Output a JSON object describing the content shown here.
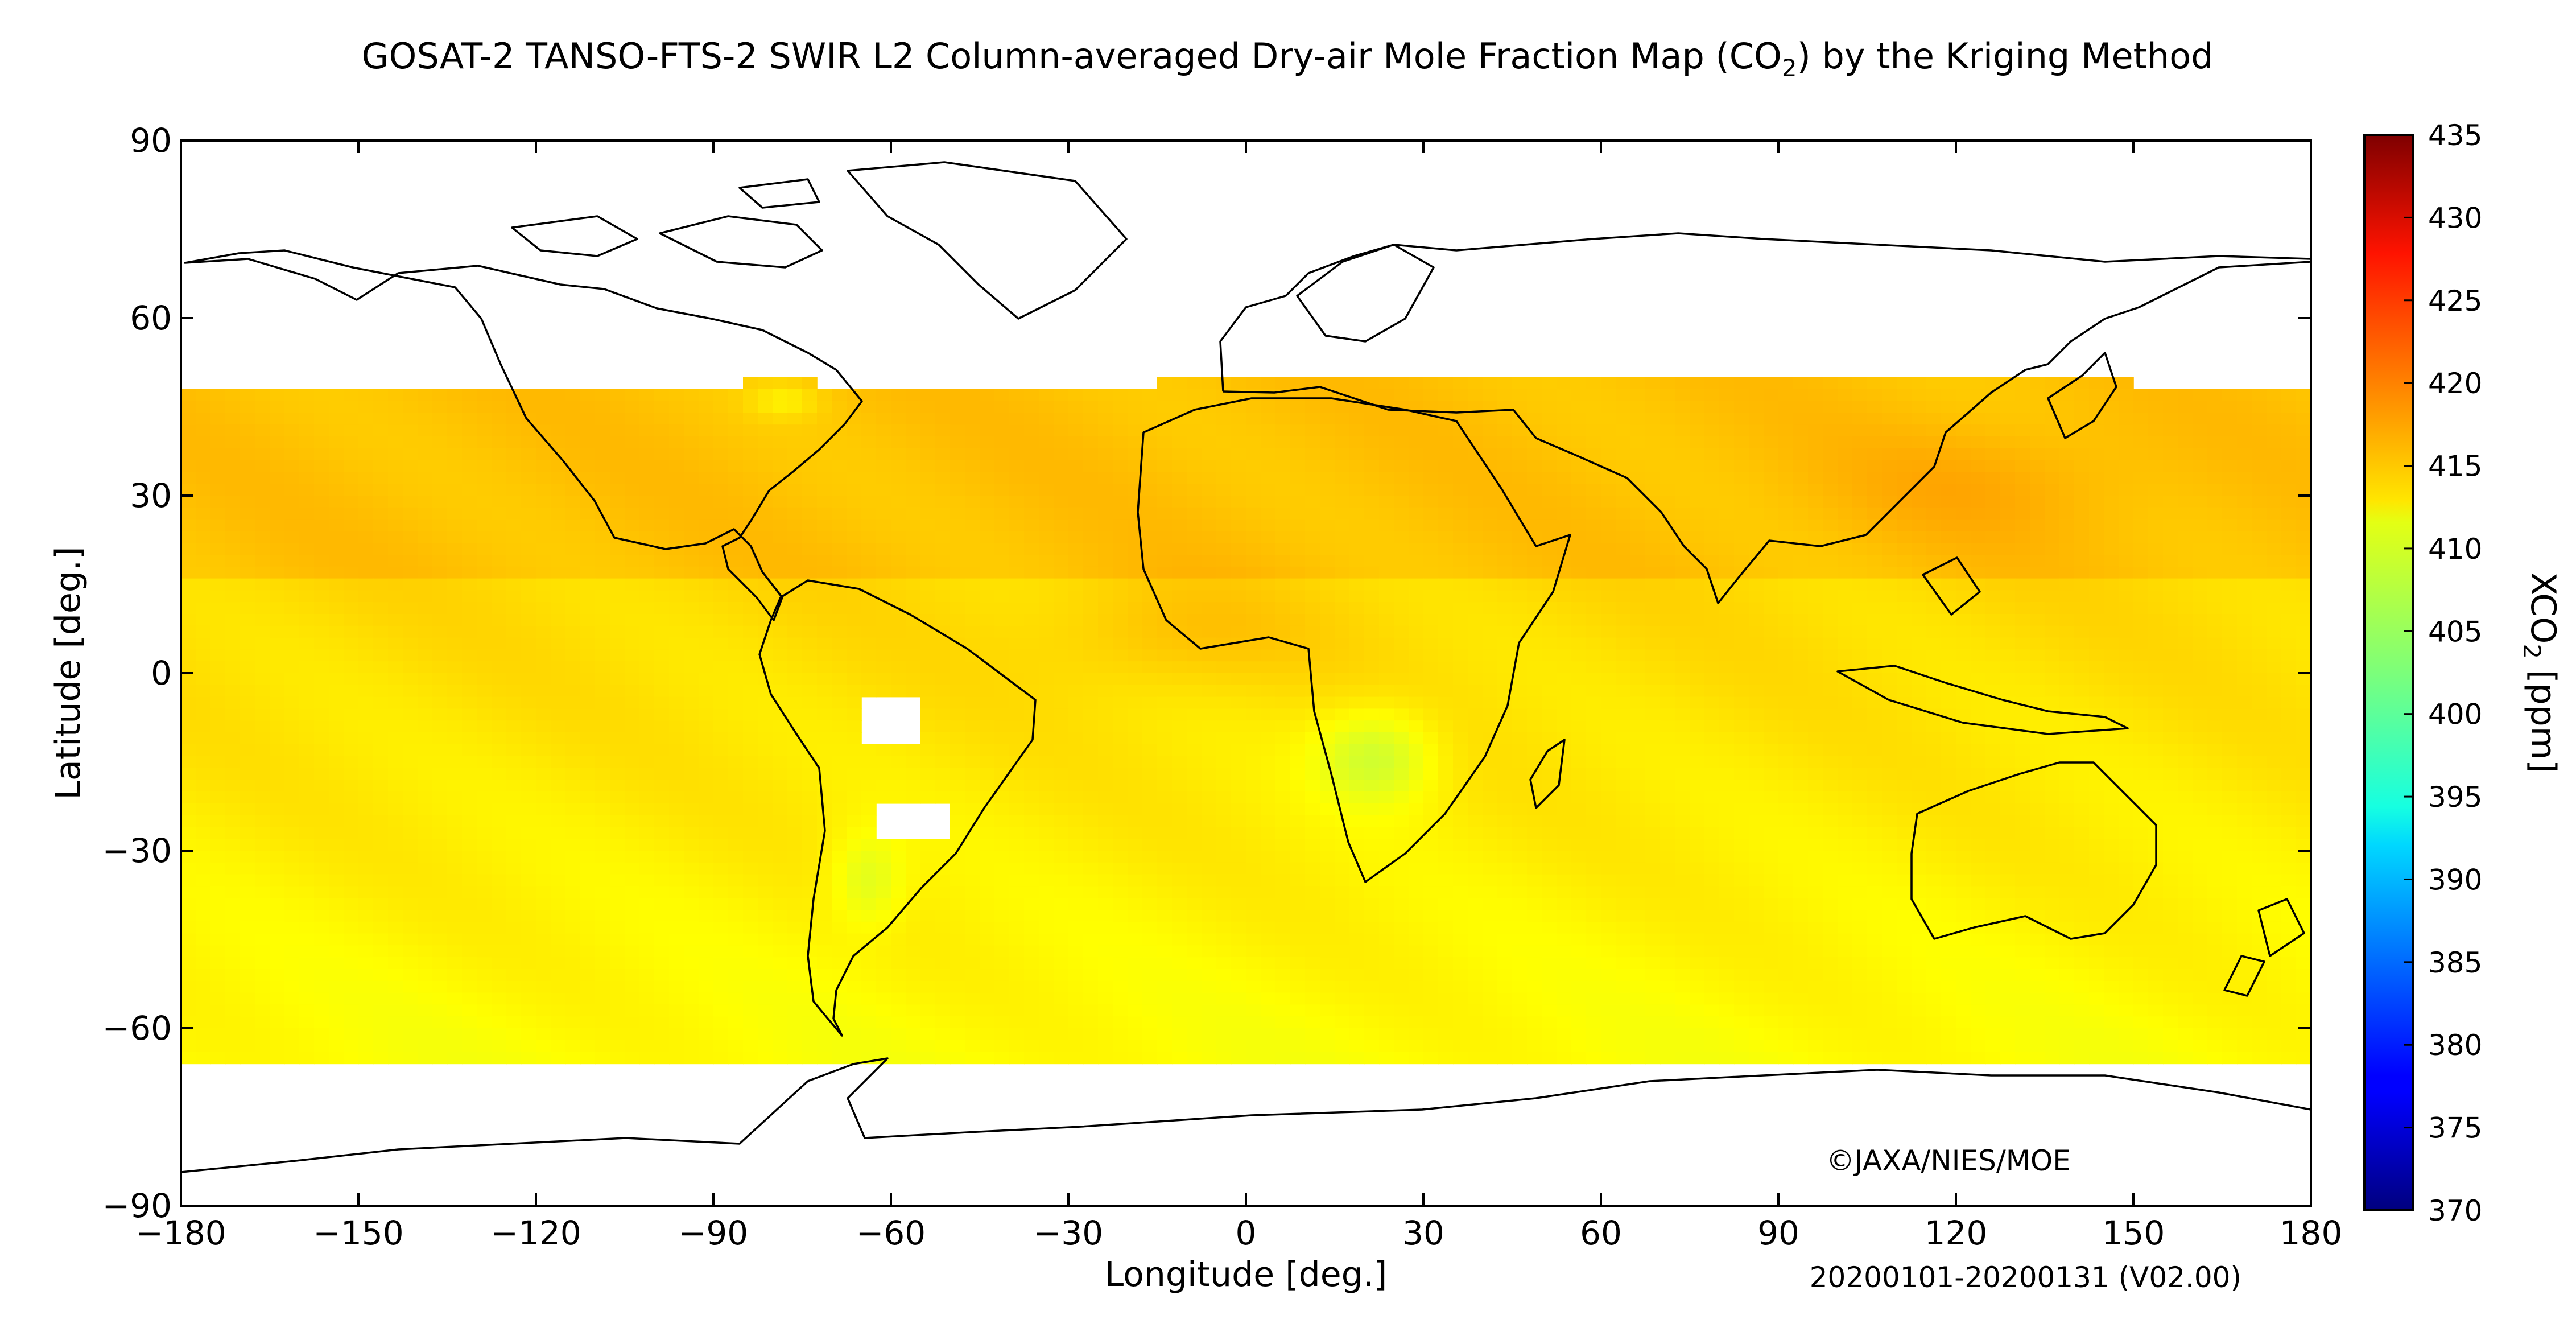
{
  "chart_data": {
    "type": "heatmap",
    "title_main": "GOSAT-2 TANSO-FTS-2 SWIR L2 Column-averaged Dry-air Mole Fraction Map (CO",
    "title_sub": "2",
    "title_end": ") by the Kriging Method",
    "xlabel": "Longitude [deg.]",
    "ylabel": "Latitude [deg.]",
    "xlim": [
      -180,
      180
    ],
    "ylim": [
      -90,
      90
    ],
    "xticks": [
      -180,
      -150,
      -120,
      -90,
      -60,
      -30,
      0,
      30,
      60,
      90,
      120,
      150,
      180
    ],
    "yticks": [
      -90,
      -60,
      -30,
      0,
      30,
      60,
      90
    ],
    "xtick_labels": [
      "−180",
      "−150",
      "−120",
      "−90",
      "−60",
      "−30",
      "0",
      "30",
      "60",
      "90",
      "120",
      "150",
      "180"
    ],
    "ytick_labels": [
      "−90",
      "−60",
      "−30",
      "0",
      "30",
      "60",
      "90"
    ],
    "colorbar": {
      "label_main": "XCO",
      "label_sub": "2",
      "label_end": " [ppm]",
      "range": [
        370,
        435
      ],
      "ticks": [
        370,
        375,
        380,
        385,
        390,
        395,
        400,
        405,
        410,
        415,
        420,
        425,
        430,
        435
      ],
      "colormap": "jet"
    },
    "coverage_lat": [
      -65,
      50
    ],
    "copyright": "©JAXA/NIES/MOE",
    "period": "20200101-20200131 (V02.00)"
  },
  "colors": {
    "low": "#00007f",
    "mid": "#7fff7f",
    "high": "#7f0000",
    "coast": "#000000"
  }
}
